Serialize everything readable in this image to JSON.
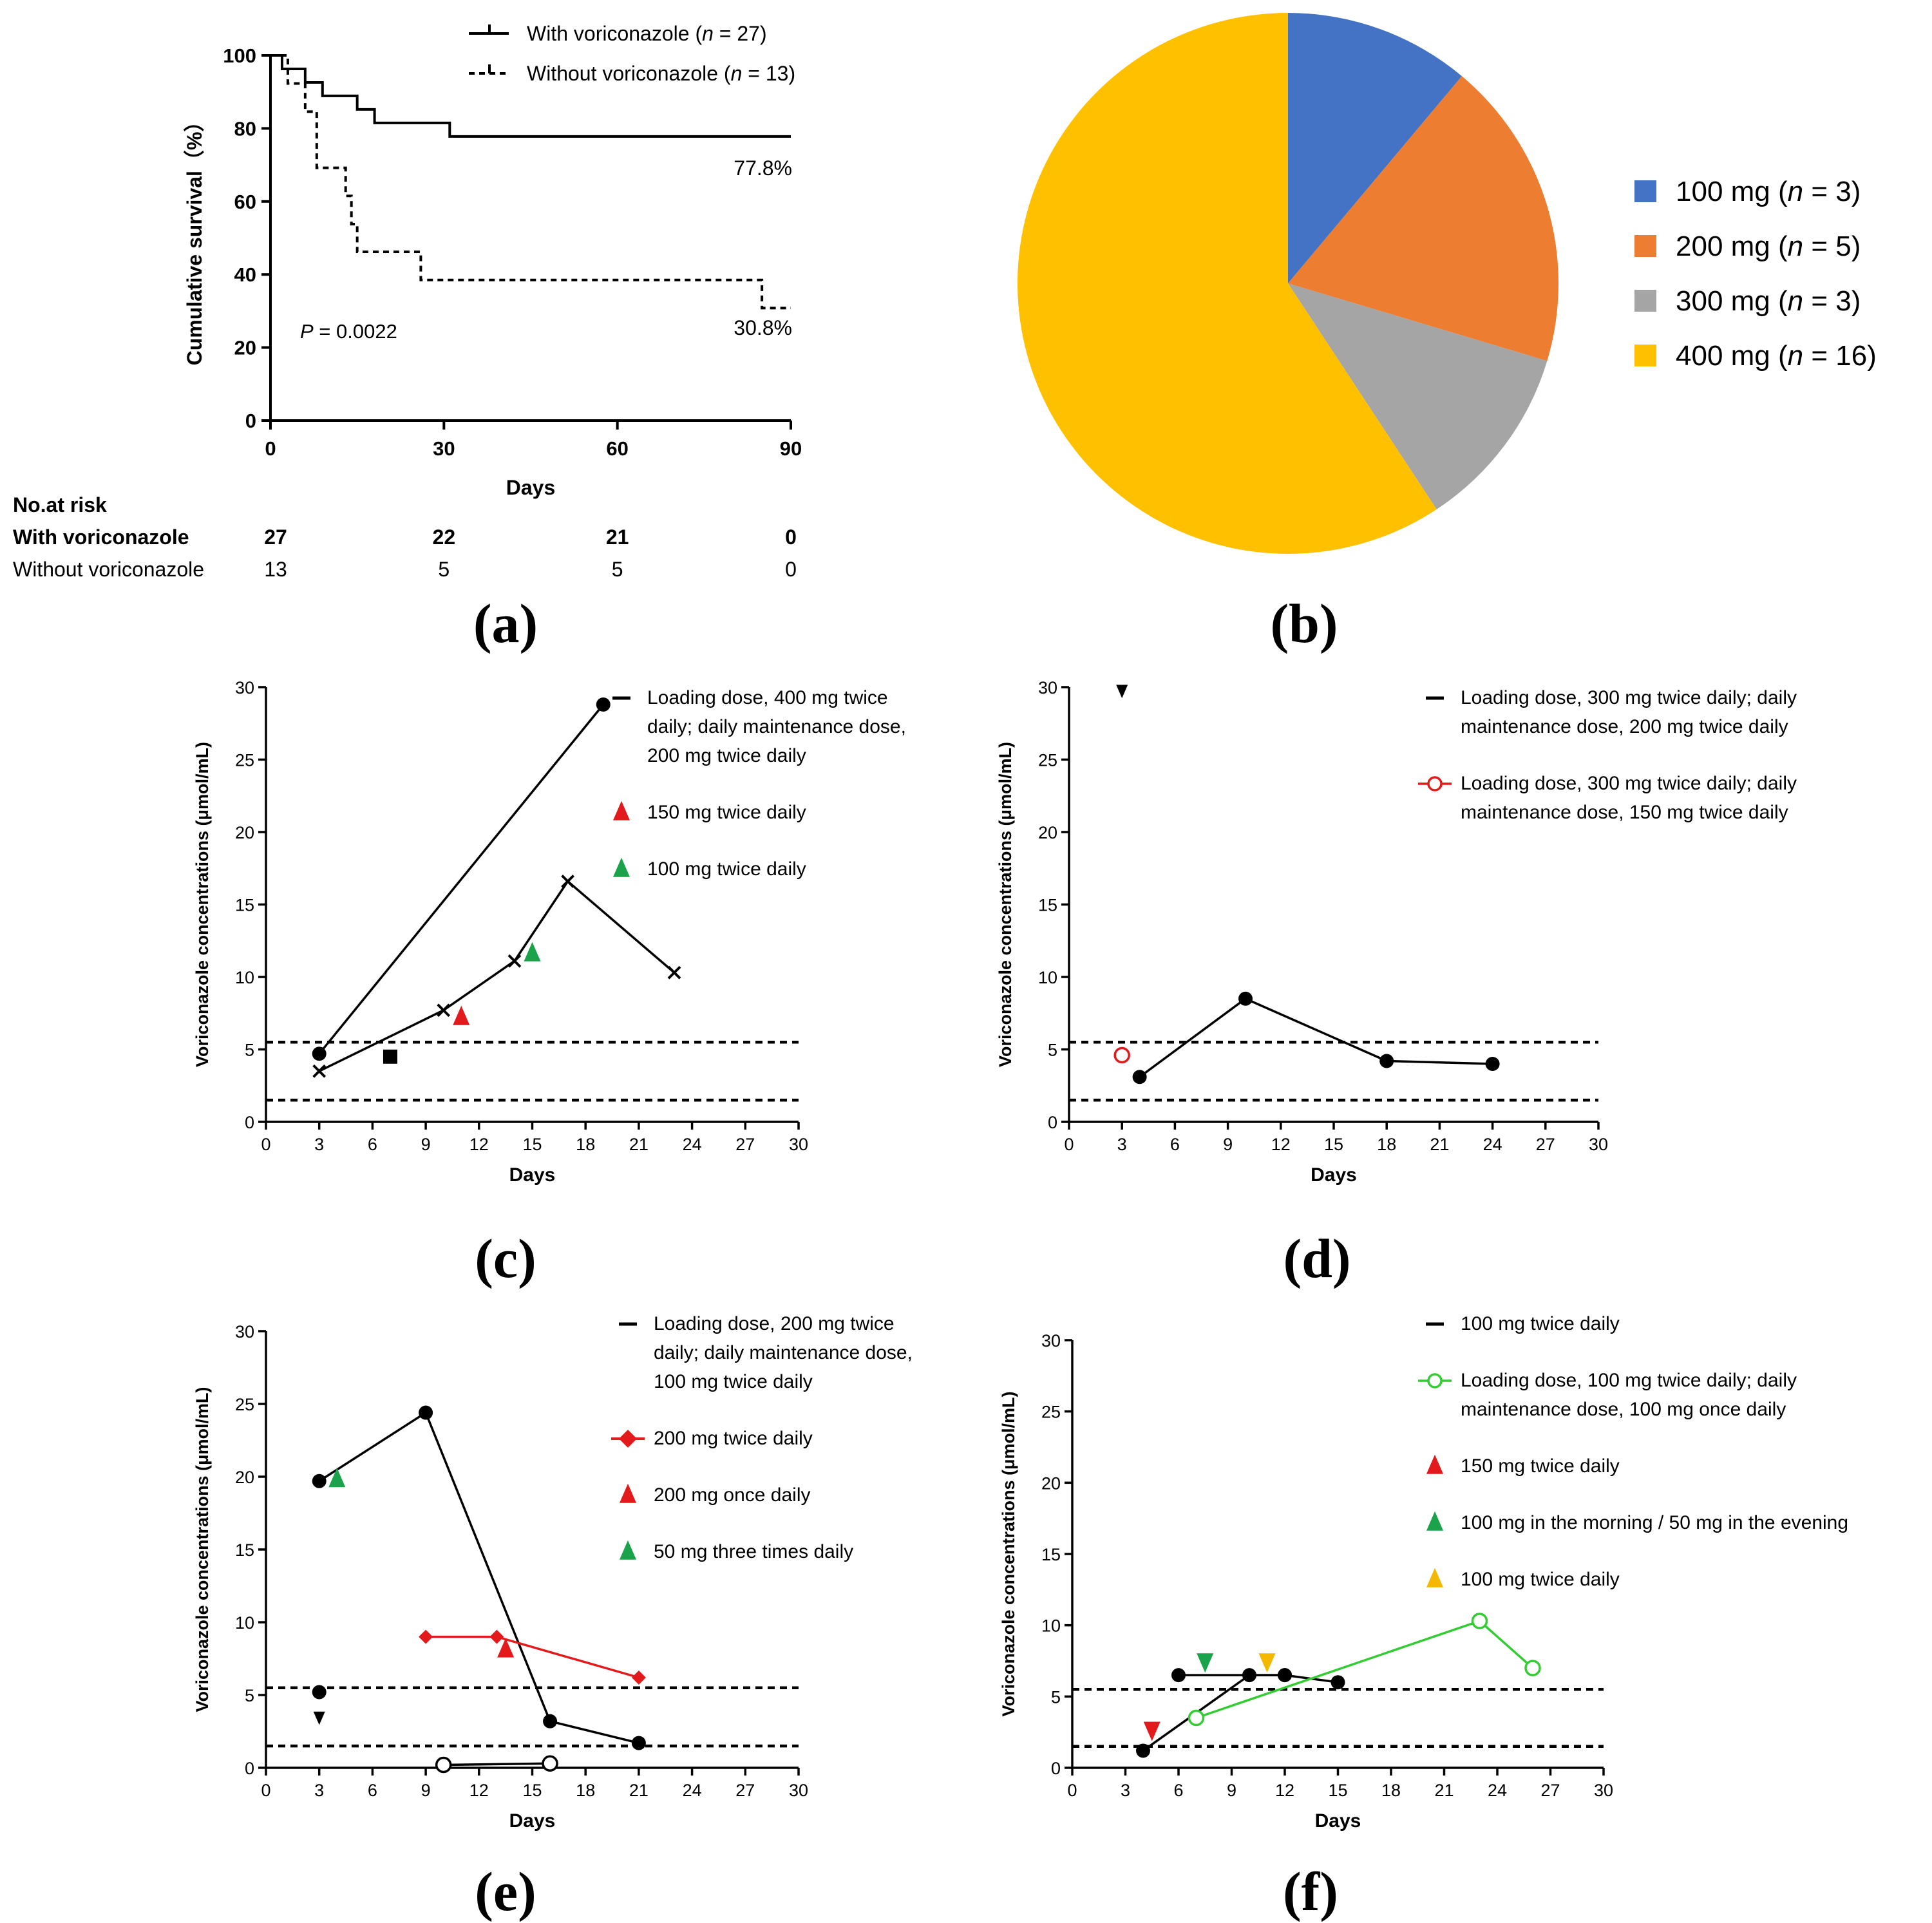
{
  "panel_labels": {
    "a": "(a)",
    "b": "(b)",
    "c": "(c)",
    "d": "(d)",
    "e": "(e)",
    "f": "(f)"
  },
  "colors": {
    "black": "#000000",
    "red": "#e31a1c",
    "green": "#1aa34a",
    "yellow": "#f5b800",
    "lightgreen": "#33cc33",
    "pie_100": "#4472c4",
    "pie_200": "#ed7d31",
    "pie_300": "#a5a5a5",
    "pie_400": "#ffc000"
  },
  "chart_data": [
    {
      "id": "a",
      "type": "line",
      "subtype": "kaplan-meier",
      "xlabel": "Days",
      "ylabel": "Cumulative survival（%）",
      "xlim": [
        0,
        90
      ],
      "ylim": [
        0,
        100
      ],
      "xticks": [
        "0",
        "30",
        "60",
        "90"
      ],
      "yticks": [
        "0",
        "20",
        "40",
        "60",
        "80",
        "100"
      ],
      "series": [
        {
          "name": "With voriconazole",
          "legend_prefix": "With voriconazole (",
          "legend_n": "n",
          "legend_suffix": " = 27)",
          "style": "solid",
          "x": [
            0,
            2,
            6,
            9,
            15,
            18,
            22,
            31,
            90
          ],
          "y": [
            100,
            96.3,
            92.6,
            88.9,
            85.2,
            81.5,
            81.5,
            77.8,
            77.8
          ],
          "end_label": "77.8%"
        },
        {
          "name": "Without voriconazole",
          "legend_prefix": "Without voriconazole (",
          "legend_n": "n",
          "legend_suffix": " = 13)",
          "style": "dashed",
          "x": [
            0,
            3,
            5,
            6,
            8,
            13,
            14,
            15,
            26,
            85,
            90
          ],
          "y": [
            100,
            92.3,
            92.3,
            84.6,
            69.2,
            61.5,
            53.8,
            46.2,
            38.5,
            30.8,
            30.8
          ],
          "end_label": "30.8%"
        }
      ],
      "p_value": {
        "label": "P",
        "text": " = 0.0022"
      },
      "risk_table": {
        "header": "No.at risk",
        "rows": [
          {
            "label": "With voriconazole",
            "values": [
              "27",
              "22",
              "21",
              "0"
            ],
            "bold": true
          },
          {
            "label": "Without voriconazole",
            "values": [
              "13",
              "5",
              "5",
              "0"
            ],
            "bold": false
          }
        ]
      }
    },
    {
      "id": "b",
      "type": "pie",
      "slices": [
        {
          "label": "100 mg (",
          "n": "n",
          "suffix": " = 3)",
          "value": 3,
          "color": "#4472c4"
        },
        {
          "label": "200 mg (",
          "n": "n",
          "suffix": " = 5)",
          "value": 5,
          "color": "#ed7d31"
        },
        {
          "label": "300 mg (",
          "n": "n",
          "suffix": " = 3)",
          "value": 3,
          "color": "#a5a5a5"
        },
        {
          "label": "400 mg (",
          "n": "n",
          "suffix": " = 16)",
          "value": 16,
          "color": "#ffc000"
        }
      ]
    },
    {
      "id": "c",
      "type": "line",
      "xlabel": "Days",
      "ylabel": "Voriconazole concentrations (μmol/mL)",
      "xlim": [
        0,
        30
      ],
      "ylim": [
        0,
        30
      ],
      "xticks": [
        "0",
        "3",
        "6",
        "9",
        "12",
        "15",
        "18",
        "21",
        "24",
        "27",
        "30"
      ],
      "yticks": [
        "0",
        "5",
        "10",
        "15",
        "20",
        "25",
        "30"
      ],
      "ref_lines": [
        5.5,
        1.5
      ],
      "legend": [
        {
          "marker": "dash",
          "color": "#000000",
          "lines": [
            "Loading dose, 400 mg twice",
            "daily; daily maintenance dose,",
            "200 mg twice daily"
          ]
        },
        {
          "marker": "triangle",
          "color": "#e31a1c",
          "lines": [
            "150 mg twice daily"
          ]
        },
        {
          "marker": "triangle",
          "color": "#1aa34a",
          "lines": [
            "100 mg twice daily"
          ]
        }
      ],
      "series": [
        {
          "name": "patient-circle",
          "color": "#000000",
          "marker": "circle",
          "x": [
            3,
            19
          ],
          "y": [
            4.7,
            28.8
          ]
        },
        {
          "name": "patient-cross",
          "color": "#000000",
          "marker": "x",
          "x": [
            3,
            10,
            14,
            17,
            23
          ],
          "y": [
            3.5,
            7.7,
            11.1,
            16.6,
            10.3
          ]
        },
        {
          "name": "patient-square",
          "color": "#000000",
          "marker": "square",
          "x": [
            7
          ],
          "y": [
            4.5
          ]
        }
      ],
      "dose_markers": [
        {
          "x": 11,
          "y": 7.2,
          "color": "#e31a1c",
          "dir": "up"
        },
        {
          "x": 15,
          "y": 11.6,
          "color": "#1aa34a",
          "dir": "up"
        }
      ]
    },
    {
      "id": "d",
      "type": "line",
      "xlabel": "Days",
      "ylabel": "Voriconazole concentrations (μmol/mL)",
      "xlim": [
        0,
        30
      ],
      "ylim": [
        0,
        30
      ],
      "xticks": [
        "0",
        "3",
        "6",
        "9",
        "12",
        "15",
        "18",
        "21",
        "24",
        "27",
        "30"
      ],
      "yticks": [
        "0",
        "5",
        "10",
        "15",
        "20",
        "25",
        "30"
      ],
      "ref_lines": [
        5.5,
        1.5
      ],
      "legend": [
        {
          "marker": "dash",
          "color": "#000000",
          "lines": [
            "Loading dose, 300 mg twice daily; daily",
            "maintenance dose, 200 mg twice daily"
          ]
        },
        {
          "marker": "open-circle-line",
          "color": "#e31a1c",
          "lines": [
            "Loading dose, 300 mg twice daily; daily",
            "maintenance dose, 150 mg twice daily"
          ]
        }
      ],
      "series": [
        {
          "name": "patient-black",
          "color": "#000000",
          "marker": "circle",
          "x": [
            4,
            10,
            18,
            24
          ],
          "y": [
            3.1,
            8.5,
            4.2,
            4.0
          ]
        },
        {
          "name": "patient-red",
          "color": "#e31a1c",
          "marker": "open-circle",
          "x": [
            3
          ],
          "y": [
            4.6
          ]
        }
      ],
      "dose_markers": [
        {
          "x": 3,
          "y": 29.8,
          "color": "#000000",
          "dir": "down"
        }
      ]
    },
    {
      "id": "e",
      "type": "line",
      "xlabel": "Days",
      "ylabel": "Voriconazole concentrations (μmol/mL)",
      "xlim": [
        0,
        30
      ],
      "ylim": [
        0,
        30
      ],
      "xticks": [
        "0",
        "3",
        "6",
        "9",
        "12",
        "15",
        "18",
        "21",
        "24",
        "27",
        "30"
      ],
      "yticks": [
        "0",
        "5",
        "10",
        "15",
        "20",
        "25",
        "30"
      ],
      "ref_lines": [
        5.5,
        1.5
      ],
      "legend": [
        {
          "marker": "dash",
          "color": "#000000",
          "lines": [
            "Loading dose, 200 mg twice",
            "daily; daily maintenance dose,",
            "100 mg twice daily"
          ]
        },
        {
          "marker": "diamond-line",
          "color": "#e31a1c",
          "lines": [
            "200 mg twice daily"
          ]
        },
        {
          "marker": "triangle",
          "color": "#e31a1c",
          "lines": [
            "200 mg once daily"
          ]
        },
        {
          "marker": "triangle",
          "color": "#1aa34a",
          "lines": [
            "50 mg three times daily"
          ]
        }
      ],
      "series": [
        {
          "name": "patient-circle",
          "color": "#000000",
          "marker": "circle",
          "x": [
            3,
            9,
            16,
            21
          ],
          "y": [
            19.7,
            24.4,
            3.2,
            1.7
          ]
        },
        {
          "name": "patient-open-circle",
          "color": "#000000",
          "marker": "open-circle",
          "x": [
            10,
            16
          ],
          "y": [
            0.2,
            0.3
          ]
        },
        {
          "name": "patient-single",
          "color": "#000000",
          "marker": "circle",
          "x": [
            3
          ],
          "y": [
            5.2
          ]
        },
        {
          "name": "patient-red",
          "color": "#e31a1c",
          "marker": "diamond",
          "x": [
            9,
            13,
            21
          ],
          "y": [
            9.0,
            9.0,
            6.2
          ]
        }
      ],
      "dose_markers": [
        {
          "x": 3,
          "y": 3.5,
          "color": "#000000",
          "dir": "down"
        },
        {
          "x": 4,
          "y": 19.8,
          "color": "#1aa34a",
          "dir": "up"
        },
        {
          "x": 13.5,
          "y": 8.1,
          "color": "#e31a1c",
          "dir": "up"
        }
      ]
    },
    {
      "id": "f",
      "type": "line",
      "xlabel": "Days",
      "ylabel": "Voriconazole concentrations (μmol/mL)",
      "xlim": [
        0,
        30
      ],
      "ylim": [
        0,
        30
      ],
      "xticks": [
        "0",
        "3",
        "6",
        "9",
        "12",
        "15",
        "18",
        "21",
        "24",
        "27",
        "30"
      ],
      "yticks": [
        "0",
        "5",
        "10",
        "15",
        "20",
        "25",
        "30"
      ],
      "ref_lines": [
        5.5,
        1.5
      ],
      "legend": [
        {
          "marker": "dash",
          "color": "#000000",
          "lines": [
            "100 mg twice daily"
          ]
        },
        {
          "marker": "open-circle-line",
          "color": "#33cc33",
          "lines": [
            "Loading dose, 100 mg twice daily; daily",
            "maintenance dose, 100 mg once daily"
          ]
        },
        {
          "marker": "triangle",
          "color": "#e31a1c",
          "lines": [
            "150 mg twice daily"
          ]
        },
        {
          "marker": "triangle",
          "color": "#1aa34a",
          "lines": [
            "100 mg in the morning / 50 mg in the evening"
          ]
        },
        {
          "marker": "triangle",
          "color": "#f5b800",
          "lines": [
            "100 mg twice daily"
          ]
        }
      ],
      "series": [
        {
          "name": "patient-black",
          "color": "#000000",
          "marker": "circle",
          "x": [
            4,
            10,
            12,
            15
          ],
          "y": [
            1.2,
            6.5,
            6.5,
            6.0
          ]
        },
        {
          "name": "patient-black-2",
          "color": "#000000",
          "marker": "circle",
          "x": [
            6,
            12
          ],
          "y": [
            6.5,
            6.5
          ]
        },
        {
          "name": "patient-green",
          "color": "#33cc33",
          "marker": "open-circle",
          "x": [
            7,
            23,
            26
          ],
          "y": [
            3.5,
            10.3,
            7.0
          ]
        }
      ],
      "dose_markers": [
        {
          "x": 4.5,
          "y": 2.7,
          "color": "#e31a1c",
          "dir": "down"
        },
        {
          "x": 7.5,
          "y": 7.5,
          "color": "#1aa34a",
          "dir": "down"
        },
        {
          "x": 11,
          "y": 7.5,
          "color": "#f5b800",
          "dir": "down"
        }
      ]
    }
  ]
}
